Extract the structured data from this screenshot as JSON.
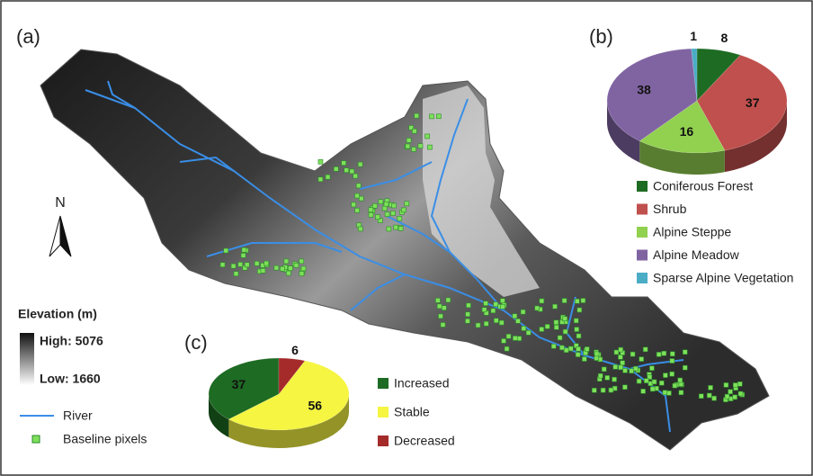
{
  "map": {
    "panel_label": "(a)",
    "north_label": "N",
    "legend_title": "Elevation (m)",
    "legend_high": "High: 5076",
    "legend_low": "Low: 1660",
    "legend_river": "River",
    "legend_pixels": "Baseline pixels"
  },
  "chart_data": [
    {
      "type": "pie",
      "panel_label": "(b)",
      "series": [
        {
          "name": "Coniferous Forest",
          "color": "#1e6b23",
          "values": [
            8
          ]
        },
        {
          "name": "Shrub",
          "color": "#c0504d",
          "values": [
            37
          ]
        },
        {
          "name": "Alpine Steppe",
          "color": "#92d050",
          "values": [
            16
          ]
        },
        {
          "name": "Alpine Meadow",
          "color": "#8064a2",
          "values": [
            38
          ]
        },
        {
          "name": "Sparse Alpine Vegetation",
          "color": "#4bacc6",
          "values": [
            1
          ]
        }
      ]
    },
    {
      "type": "pie",
      "panel_label": "(c)",
      "series": [
        {
          "name": "Increased",
          "color": "#1e6b23",
          "values": [
            37
          ]
        },
        {
          "name": "Stable",
          "color": "#f5f542",
          "values": [
            56
          ]
        },
        {
          "name": "Decreased",
          "color": "#a52a2a",
          "values": [
            6
          ]
        }
      ]
    }
  ]
}
